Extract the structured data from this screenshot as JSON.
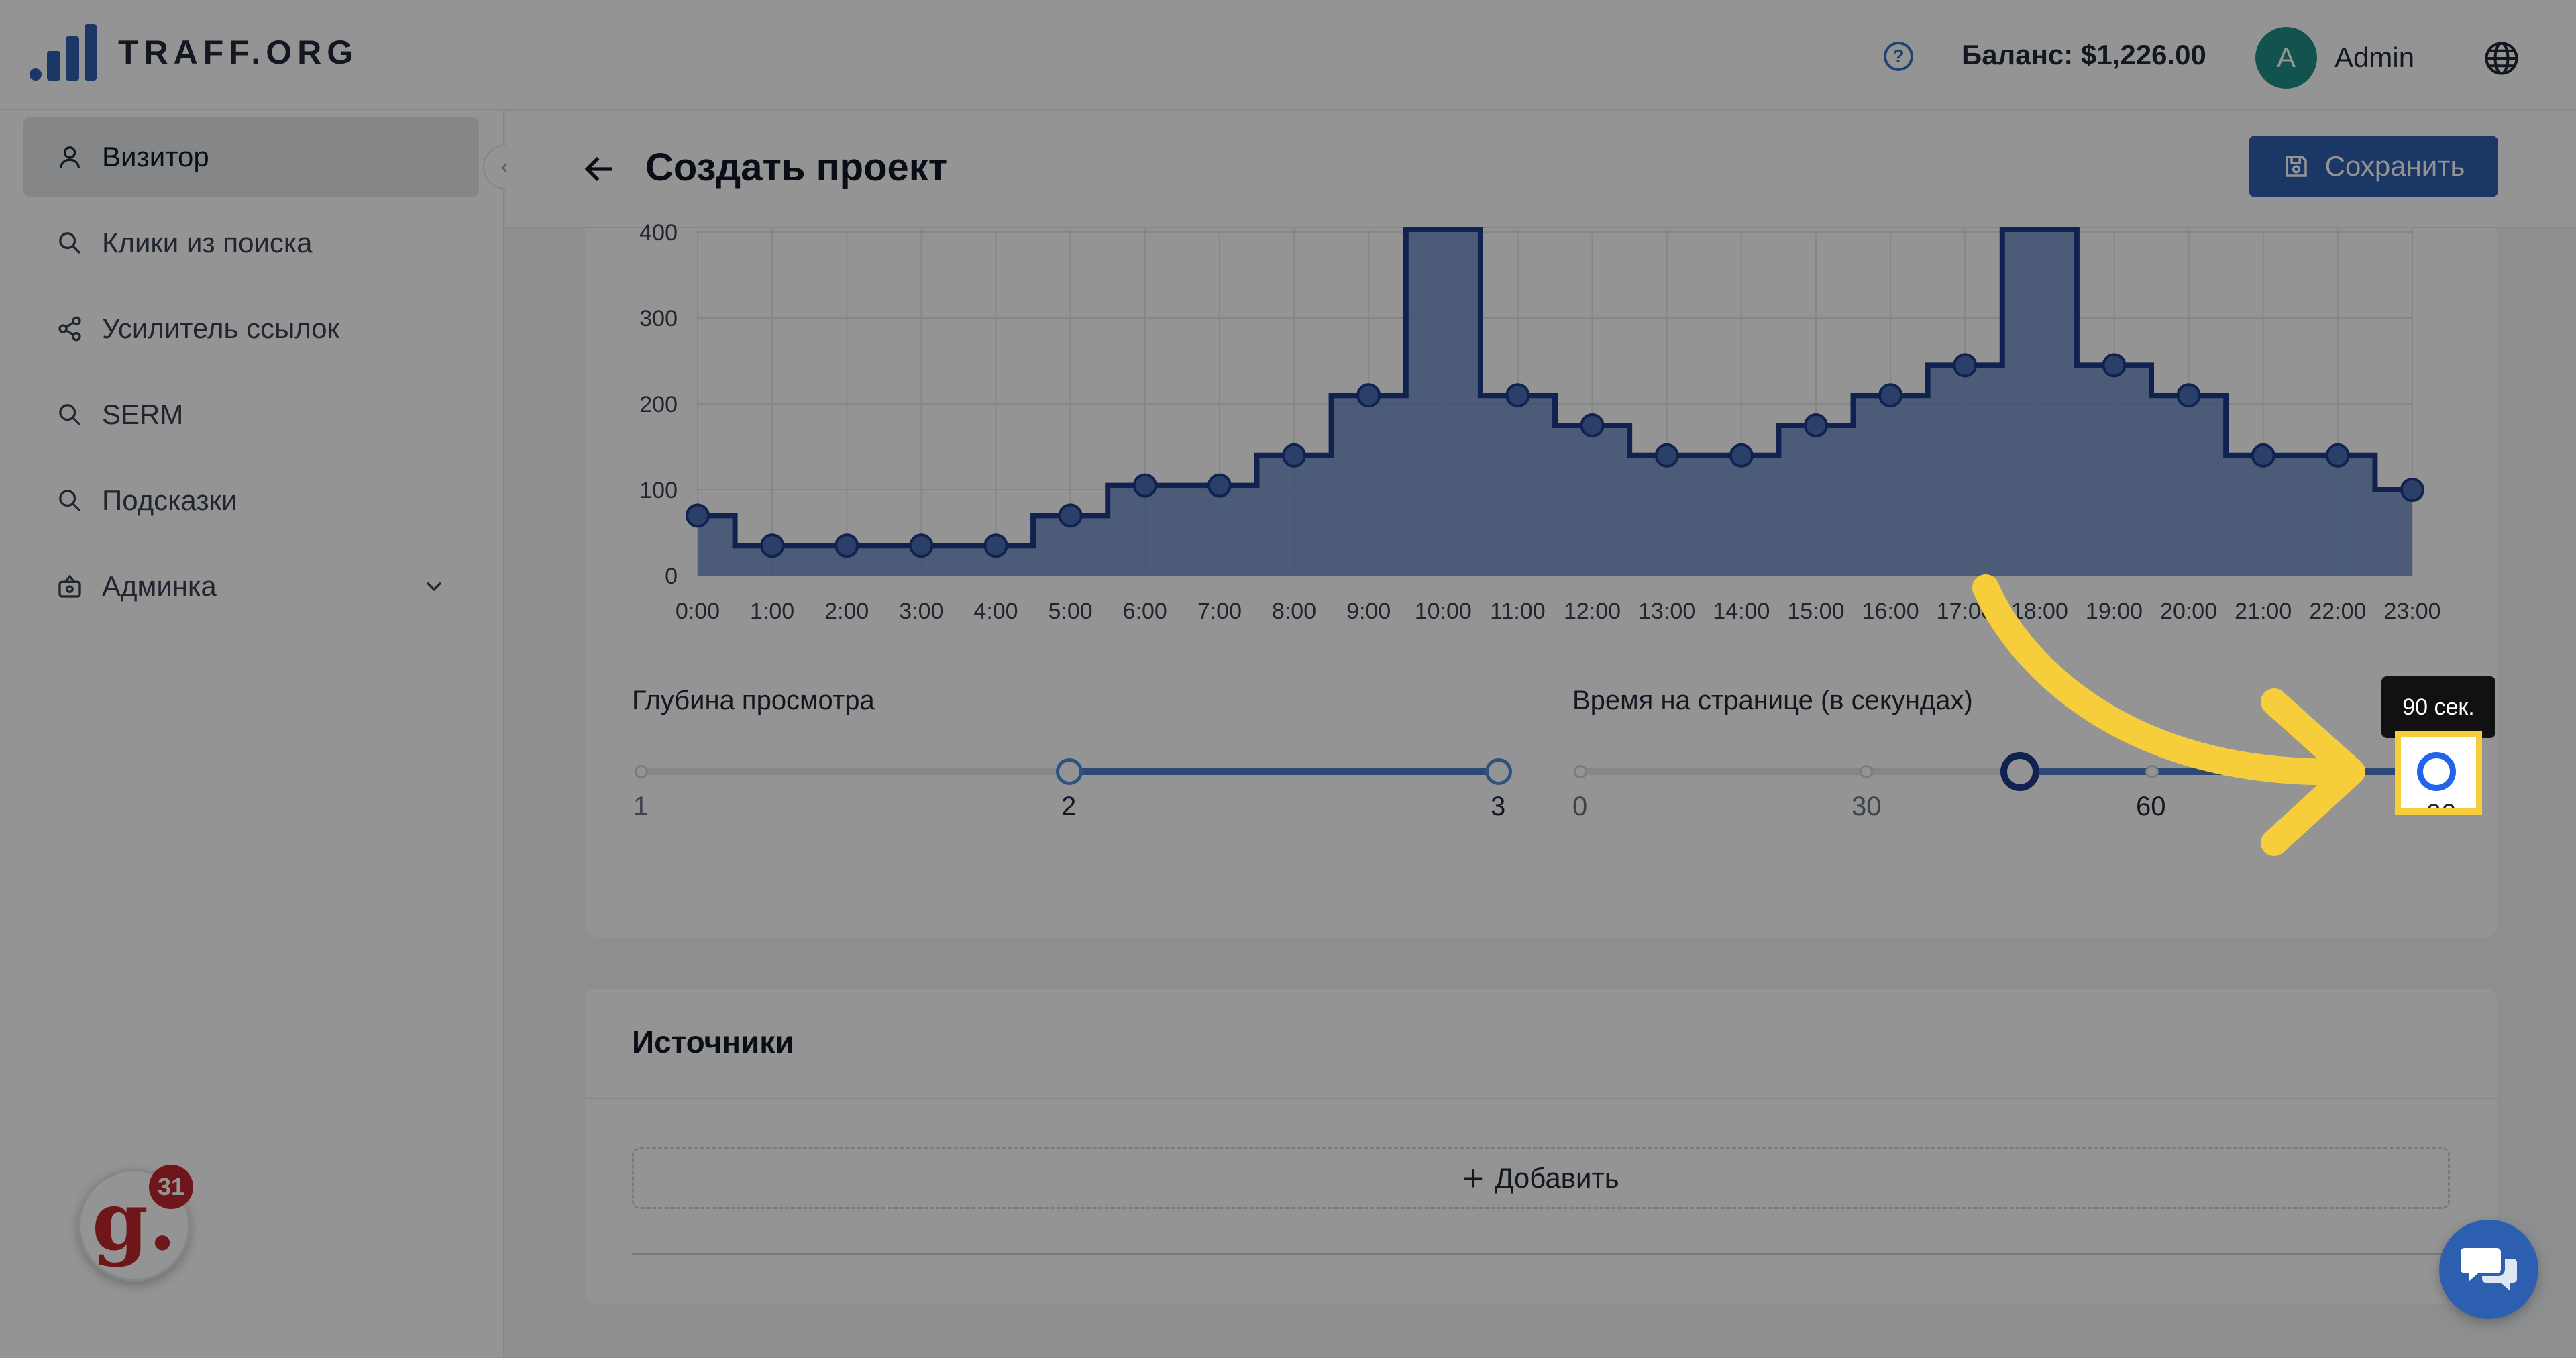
{
  "header": {
    "logo_text": "TRAFF.ORG",
    "help_glyph": "?",
    "balance": "Баланс: $1,226.00",
    "avatar_initial": "A",
    "user_name": "Admin"
  },
  "sidebar": {
    "collapse_glyph": "‹",
    "items": [
      {
        "label": "Визитор",
        "icon": "user-icon"
      },
      {
        "label": "Клики из поиска",
        "icon": "search-icon"
      },
      {
        "label": "Усилитель ссылок",
        "icon": "share-icon"
      },
      {
        "label": "SERM",
        "icon": "search-icon"
      },
      {
        "label": "Подсказки",
        "icon": "search-icon"
      },
      {
        "label": "Админка",
        "icon": "admin-icon"
      }
    ],
    "widget_letter": "g.",
    "widget_count": "31"
  },
  "page": {
    "title": "Создать проект",
    "save_label": "Сохранить"
  },
  "chart_data": {
    "type": "line",
    "step": true,
    "filled": true,
    "categories": [
      "0:00",
      "1:00",
      "2:00",
      "3:00",
      "4:00",
      "5:00",
      "6:00",
      "7:00",
      "8:00",
      "9:00",
      "10:00",
      "11:00",
      "12:00",
      "13:00",
      "14:00",
      "15:00",
      "16:00",
      "17:00",
      "18:00",
      "19:00",
      "20:00",
      "21:00",
      "22:00",
      "23:00"
    ],
    "values": [
      70,
      35,
      35,
      35,
      35,
      70,
      105,
      105,
      140,
      210,
      500,
      210,
      175,
      140,
      140,
      175,
      210,
      245,
      500,
      245,
      210,
      140,
      140,
      100
    ],
    "y_ticks": [
      0,
      100,
      200,
      300,
      400
    ],
    "ylim": [
      0,
      400
    ],
    "color": "#1e3a8a",
    "fill_color": "#5b7fbf",
    "grid": true
  },
  "sliders": {
    "depth": {
      "label": "Глубина просмотра",
      "marks": [
        "1",
        "2",
        "3"
      ],
      "range": [
        2,
        3
      ]
    },
    "time": {
      "label": "Время на странице (в секундах)",
      "marks": [
        "0",
        "30",
        "60",
        "90"
      ],
      "range": [
        45,
        90
      ],
      "tooltip": "90 сек."
    }
  },
  "sources": {
    "title": "Источники",
    "add_label": "Добавить"
  },
  "colors": {
    "primary": "#2d5fb0",
    "highlight": "#f6cd3b"
  }
}
